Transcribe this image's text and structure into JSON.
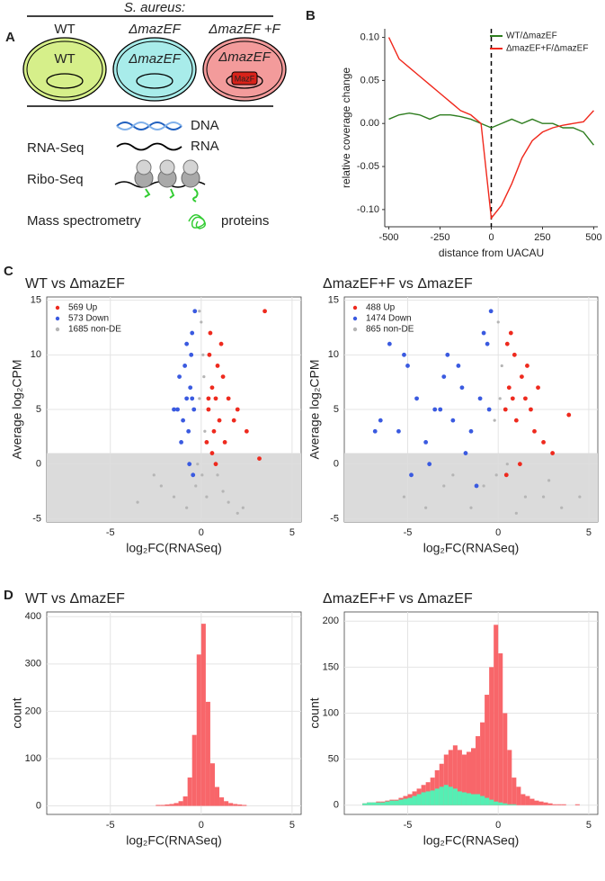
{
  "panel_labels": [
    "A",
    "B",
    "C",
    "D"
  ],
  "diagram": {
    "header": "S. aureus:",
    "strains": [
      {
        "name": "WT",
        "cell_label": "WT"
      },
      {
        "name": "ΔmazEF",
        "cell_label": "ΔmazEF"
      },
      {
        "name": "ΔmazEF +F",
        "cell_label": "ΔmazEF",
        "protein": "MazF"
      }
    ],
    "methods": [
      {
        "label": "DNA"
      },
      {
        "name": "RNA-Seq",
        "label": "RNA"
      },
      {
        "name": "Ribo-Seq"
      },
      {
        "name": "Mass spectrometry",
        "label": "proteins"
      }
    ]
  },
  "chart_data": [
    {
      "type": "line",
      "xlabel": "distance from UACAU",
      "ylabel": "relative coverage change",
      "x": [
        -500,
        -450,
        -400,
        -350,
        -300,
        -250,
        -200,
        -150,
        -100,
        -50,
        0,
        50,
        100,
        150,
        200,
        250,
        300,
        350,
        400,
        450,
        500
      ],
      "series": [
        {
          "name": "WT/ΔmazEF",
          "color": "#2e7d1f",
          "values": [
            0.005,
            0.01,
            0.012,
            0.01,
            0.005,
            0.01,
            0.01,
            0.008,
            0.005,
            0.0,
            -0.005,
            0.0,
            0.005,
            0.0,
            0.005,
            0.0,
            0.0,
            -0.005,
            -0.005,
            -0.01,
            -0.025
          ]
        },
        {
          "name": "ΔmazEF+F/ΔmazEF",
          "color": "#f0281c",
          "values": [
            0.1,
            0.075,
            0.065,
            0.055,
            0.045,
            0.035,
            0.025,
            0.015,
            0.01,
            0.0,
            -0.11,
            -0.095,
            -0.07,
            -0.04,
            -0.02,
            -0.01,
            -0.005,
            -0.002,
            0.0,
            0.002,
            0.015
          ]
        }
      ],
      "xlim": [
        -520,
        520
      ],
      "xticks": [
        -500,
        -250,
        0,
        250,
        500
      ],
      "ylim": [
        -0.12,
        0.11
      ],
      "yticks": [
        {
          "value": -0.1,
          "label": "-0.10"
        },
        {
          "value": -0.05,
          "label": "-0.05"
        },
        {
          "value": 0,
          "label": "0.00"
        },
        {
          "value": 0.05,
          "label": "0.05"
        },
        {
          "value": 0.1,
          "label": "0.10"
        }
      ],
      "vline": 0,
      "legend": "top-right",
      "grid": false
    },
    {
      "type": "scatter",
      "title": "WT vs ΔmazEF",
      "xlabel": "log₂FC(RNASeq)",
      "ylabel": "Average log₂CPM",
      "series": [
        {
          "name": "569 Up",
          "color": "#ee2a1e",
          "x": [
            0.4,
            0.6,
            0.8,
            1.0,
            1.2,
            0.5,
            0.7,
            0.9,
            1.5,
            2.0,
            0.3,
            0.45,
            1.1,
            1.8,
            2.5,
            3.5,
            0.6,
            0.8,
            1.3,
            0.4,
            3.2
          ],
          "values": [
            5,
            7,
            6,
            4,
            8,
            12,
            3,
            9,
            6,
            5,
            2,
            10,
            11,
            4,
            3,
            14,
            1,
            0,
            2,
            6,
            0.5
          ]
        },
        {
          "name": "573 Down",
          "color": "#3a5ae0",
          "x": [
            -0.4,
            -0.6,
            -0.8,
            -1.0,
            -1.2,
            -0.5,
            -0.7,
            -0.9,
            -1.3,
            -0.35,
            -0.55,
            -1.1,
            -0.65,
            -0.45,
            -1.5,
            -0.8,
            -0.5
          ],
          "values": [
            5,
            7,
            6,
            4,
            8,
            12,
            3,
            9,
            5,
            14,
            10,
            2,
            0,
            -1,
            5,
            11,
            6
          ]
        },
        {
          "name": "1685 non-DE",
          "color": "#b5b5b5",
          "x": [
            0,
            0.1,
            -0.1,
            0.2,
            -0.2,
            0.05,
            -0.3,
            0.3,
            -1.5,
            1.5,
            -2.2,
            2.3,
            -0.8,
            0.9,
            -3.5,
            1.2,
            -0.1,
            0.15,
            -2.6,
            2.0
          ],
          "values": [
            13,
            10,
            6,
            3,
            0,
            -1,
            -2,
            -3,
            -3,
            -3.5,
            -2,
            -4,
            -4,
            -1,
            -3.5,
            -2.5,
            14,
            8,
            -1,
            -4.5
          ]
        }
      ],
      "xlim": [
        -8.5,
        5.5
      ],
      "xticks": [
        -5,
        0,
        5
      ],
      "ylim": [
        -5.3,
        15.3
      ],
      "yticks": [
        -5,
        0,
        5,
        10,
        15
      ],
      "shade_below": 1,
      "legend": "top-left",
      "grid": true
    },
    {
      "type": "scatter",
      "title": "ΔmazEF+F vs ΔmazEF",
      "xlabel": "log₂FC(RNASeq)",
      "ylabel": "Average log₂CPM",
      "series": [
        {
          "name": "488 Up",
          "color": "#ee2a1e",
          "x": [
            0.4,
            0.6,
            0.8,
            1.0,
            1.3,
            1.6,
            2.0,
            2.5,
            3.0,
            0.5,
            0.7,
            1.2,
            1.8,
            3.9,
            0.45,
            1.5,
            2.2,
            0.9
          ],
          "values": [
            5,
            7,
            6,
            4,
            8,
            9,
            3,
            2,
            1,
            11,
            12,
            0,
            5,
            4.5,
            -1,
            6,
            7,
            10
          ]
        },
        {
          "name": "1474 Down",
          "color": "#3a5ae0",
          "x": [
            -0.5,
            -1,
            -1.5,
            -2,
            -2.5,
            -3,
            -3.5,
            -4,
            -4.5,
            -5,
            -5.5,
            -6,
            -6.5,
            -0.8,
            -1.8,
            -2.8,
            -3.8,
            -4.8,
            -0.4,
            -1.2,
            -2.2,
            -3.2,
            -5.2,
            -0.6,
            -6.8
          ],
          "values": [
            5,
            6,
            3,
            7,
            4,
            8,
            5,
            2,
            6,
            9,
            3,
            11,
            4,
            12,
            1,
            10,
            0,
            -1,
            14,
            -2,
            9,
            5,
            10,
            11,
            3
          ]
        },
        {
          "name": "865 non-DE",
          "color": "#b5b5b5",
          "x": [
            0,
            0.2,
            -0.2,
            0.5,
            -0.8,
            1.5,
            -1.5,
            2.5,
            -2.5,
            3.5,
            -4,
            4.5,
            -0.1,
            0.1,
            -3,
            1,
            -5.2,
            2.8
          ],
          "values": [
            13,
            9,
            4,
            0,
            -2,
            -3,
            -4,
            -3,
            -1,
            -4,
            -4,
            -3,
            -1,
            6,
            -2,
            -4.5,
            -3,
            -1.5
          ]
        }
      ],
      "xlim": [
        -8.5,
        5.5
      ],
      "xticks": [
        -5,
        0,
        5
      ],
      "ylim": [
        -5.3,
        15.3
      ],
      "yticks": [
        -5,
        0,
        5,
        10,
        15
      ],
      "shade_below": 1,
      "legend": "top-left",
      "grid": true
    },
    {
      "type": "histogram",
      "title": "WT vs ΔmazEF",
      "xlabel": "log₂FC(RNASeq)",
      "ylabel": "count",
      "bins": [
        -2.5,
        -2.25,
        -2,
        -1.75,
        -1.5,
        -1.25,
        -1,
        -0.75,
        -0.5,
        -0.25,
        0,
        0.25,
        0.5,
        0.75,
        1,
        1.25,
        1.5,
        1.75,
        2,
        2.25,
        2.5
      ],
      "series": [
        {
          "color": "#f8666a",
          "values": [
            2,
            2,
            3,
            4,
            6,
            10,
            20,
            60,
            150,
            320,
            385,
            220,
            90,
            40,
            18,
            10,
            6,
            4,
            3,
            2
          ]
        }
      ],
      "xlim": [
        -8.5,
        5.5
      ],
      "xticks": [
        -5,
        0,
        5
      ],
      "ylim": [
        -18,
        410
      ],
      "yticks": [
        0,
        100,
        200,
        300,
        400
      ],
      "grid": true
    },
    {
      "type": "histogram",
      "title": "ΔmazEF+F vs ΔmazEF",
      "xlabel": "log₂FC(RNASeq)",
      "ylabel": "count",
      "bins": [
        -7.5,
        -7.25,
        -7,
        -6.75,
        -6.5,
        -6.25,
        -6,
        -5.75,
        -5.5,
        -5.25,
        -5,
        -4.75,
        -4.5,
        -4.25,
        -4,
        -3.75,
        -3.5,
        -3.25,
        -3,
        -2.75,
        -2.5,
        -2.25,
        -2,
        -1.75,
        -1.5,
        -1.25,
        -1,
        -0.75,
        -0.5,
        -0.25,
        0,
        0.25,
        0.5,
        0.75,
        1,
        1.25,
        1.5,
        1.75,
        2,
        2.25,
        2.5,
        2.75,
        3,
        3.25,
        3.5,
        3.75,
        4,
        4.25,
        4.5
      ],
      "series": [
        {
          "color": "#f8666a",
          "values": [
            2,
            3,
            3,
            4,
            4,
            5,
            6,
            6,
            8,
            10,
            12,
            15,
            18,
            22,
            25,
            30,
            38,
            45,
            55,
            60,
            65,
            60,
            55,
            58,
            62,
            75,
            90,
            120,
            150,
            196,
            165,
            100,
            60,
            30,
            20,
            12,
            10,
            7,
            5,
            4,
            3,
            2,
            1,
            1,
            1,
            0,
            0,
            1
          ]
        },
        {
          "color": "#55efb4",
          "values": [
            2,
            3,
            3,
            3,
            3,
            4,
            5,
            5,
            6,
            7,
            8,
            10,
            12,
            14,
            15,
            16,
            18,
            20,
            22,
            20,
            18,
            15,
            14,
            13,
            12,
            12,
            10,
            8,
            6,
            4,
            3,
            2,
            1,
            1,
            0,
            0,
            0,
            0,
            0,
            0,
            0,
            0,
            0,
            0,
            0,
            0,
            0,
            0
          ]
        }
      ],
      "xlim": [
        -8.5,
        5.5
      ],
      "xticks": [
        -5,
        0,
        5
      ],
      "ylim": [
        -10,
        210
      ],
      "yticks": [
        0,
        50,
        100,
        150,
        200
      ],
      "grid": true
    }
  ]
}
